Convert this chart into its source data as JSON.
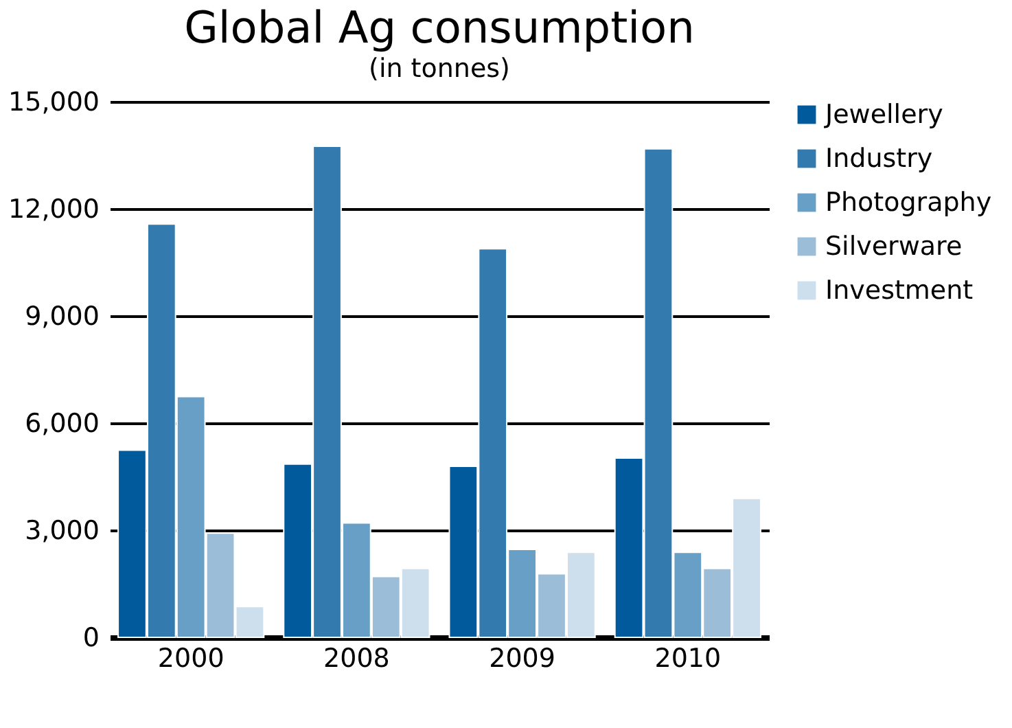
{
  "chart_data": {
    "type": "bar",
    "title": "Global Ag consumption",
    "subtitle": "(in tonnes)",
    "categories": [
      "2000",
      "2008",
      "2009",
      "2010"
    ],
    "series": [
      {
        "name": "Jewellery",
        "color": "#005a9c",
        "values": [
          5240,
          4850,
          4790,
          5020
        ]
      },
      {
        "name": "Industry",
        "color": "#337aae",
        "values": [
          11570,
          13750,
          10880,
          13680
        ]
      },
      {
        "name": "Photography",
        "color": "#679fc6",
        "values": [
          6740,
          3200,
          2460,
          2380
        ]
      },
      {
        "name": "Silverware",
        "color": "#9bbdd7",
        "values": [
          2920,
          1700,
          1780,
          1930
        ]
      },
      {
        "name": "Investment",
        "color": "#cddeec",
        "values": [
          860,
          1930,
          2380,
          3890
        ]
      }
    ],
    "ylim": [
      0,
      15000
    ],
    "yticks": [
      {
        "value": 0,
        "label": "0"
      },
      {
        "value": 3000,
        "label": "3,000"
      },
      {
        "value": 6000,
        "label": "6,000"
      },
      {
        "value": 9000,
        "label": "9,000"
      },
      {
        "value": 12000,
        "label": "12,000"
      },
      {
        "value": 15000,
        "label": "15,000"
      }
    ],
    "grid": "y",
    "legend": "right"
  }
}
